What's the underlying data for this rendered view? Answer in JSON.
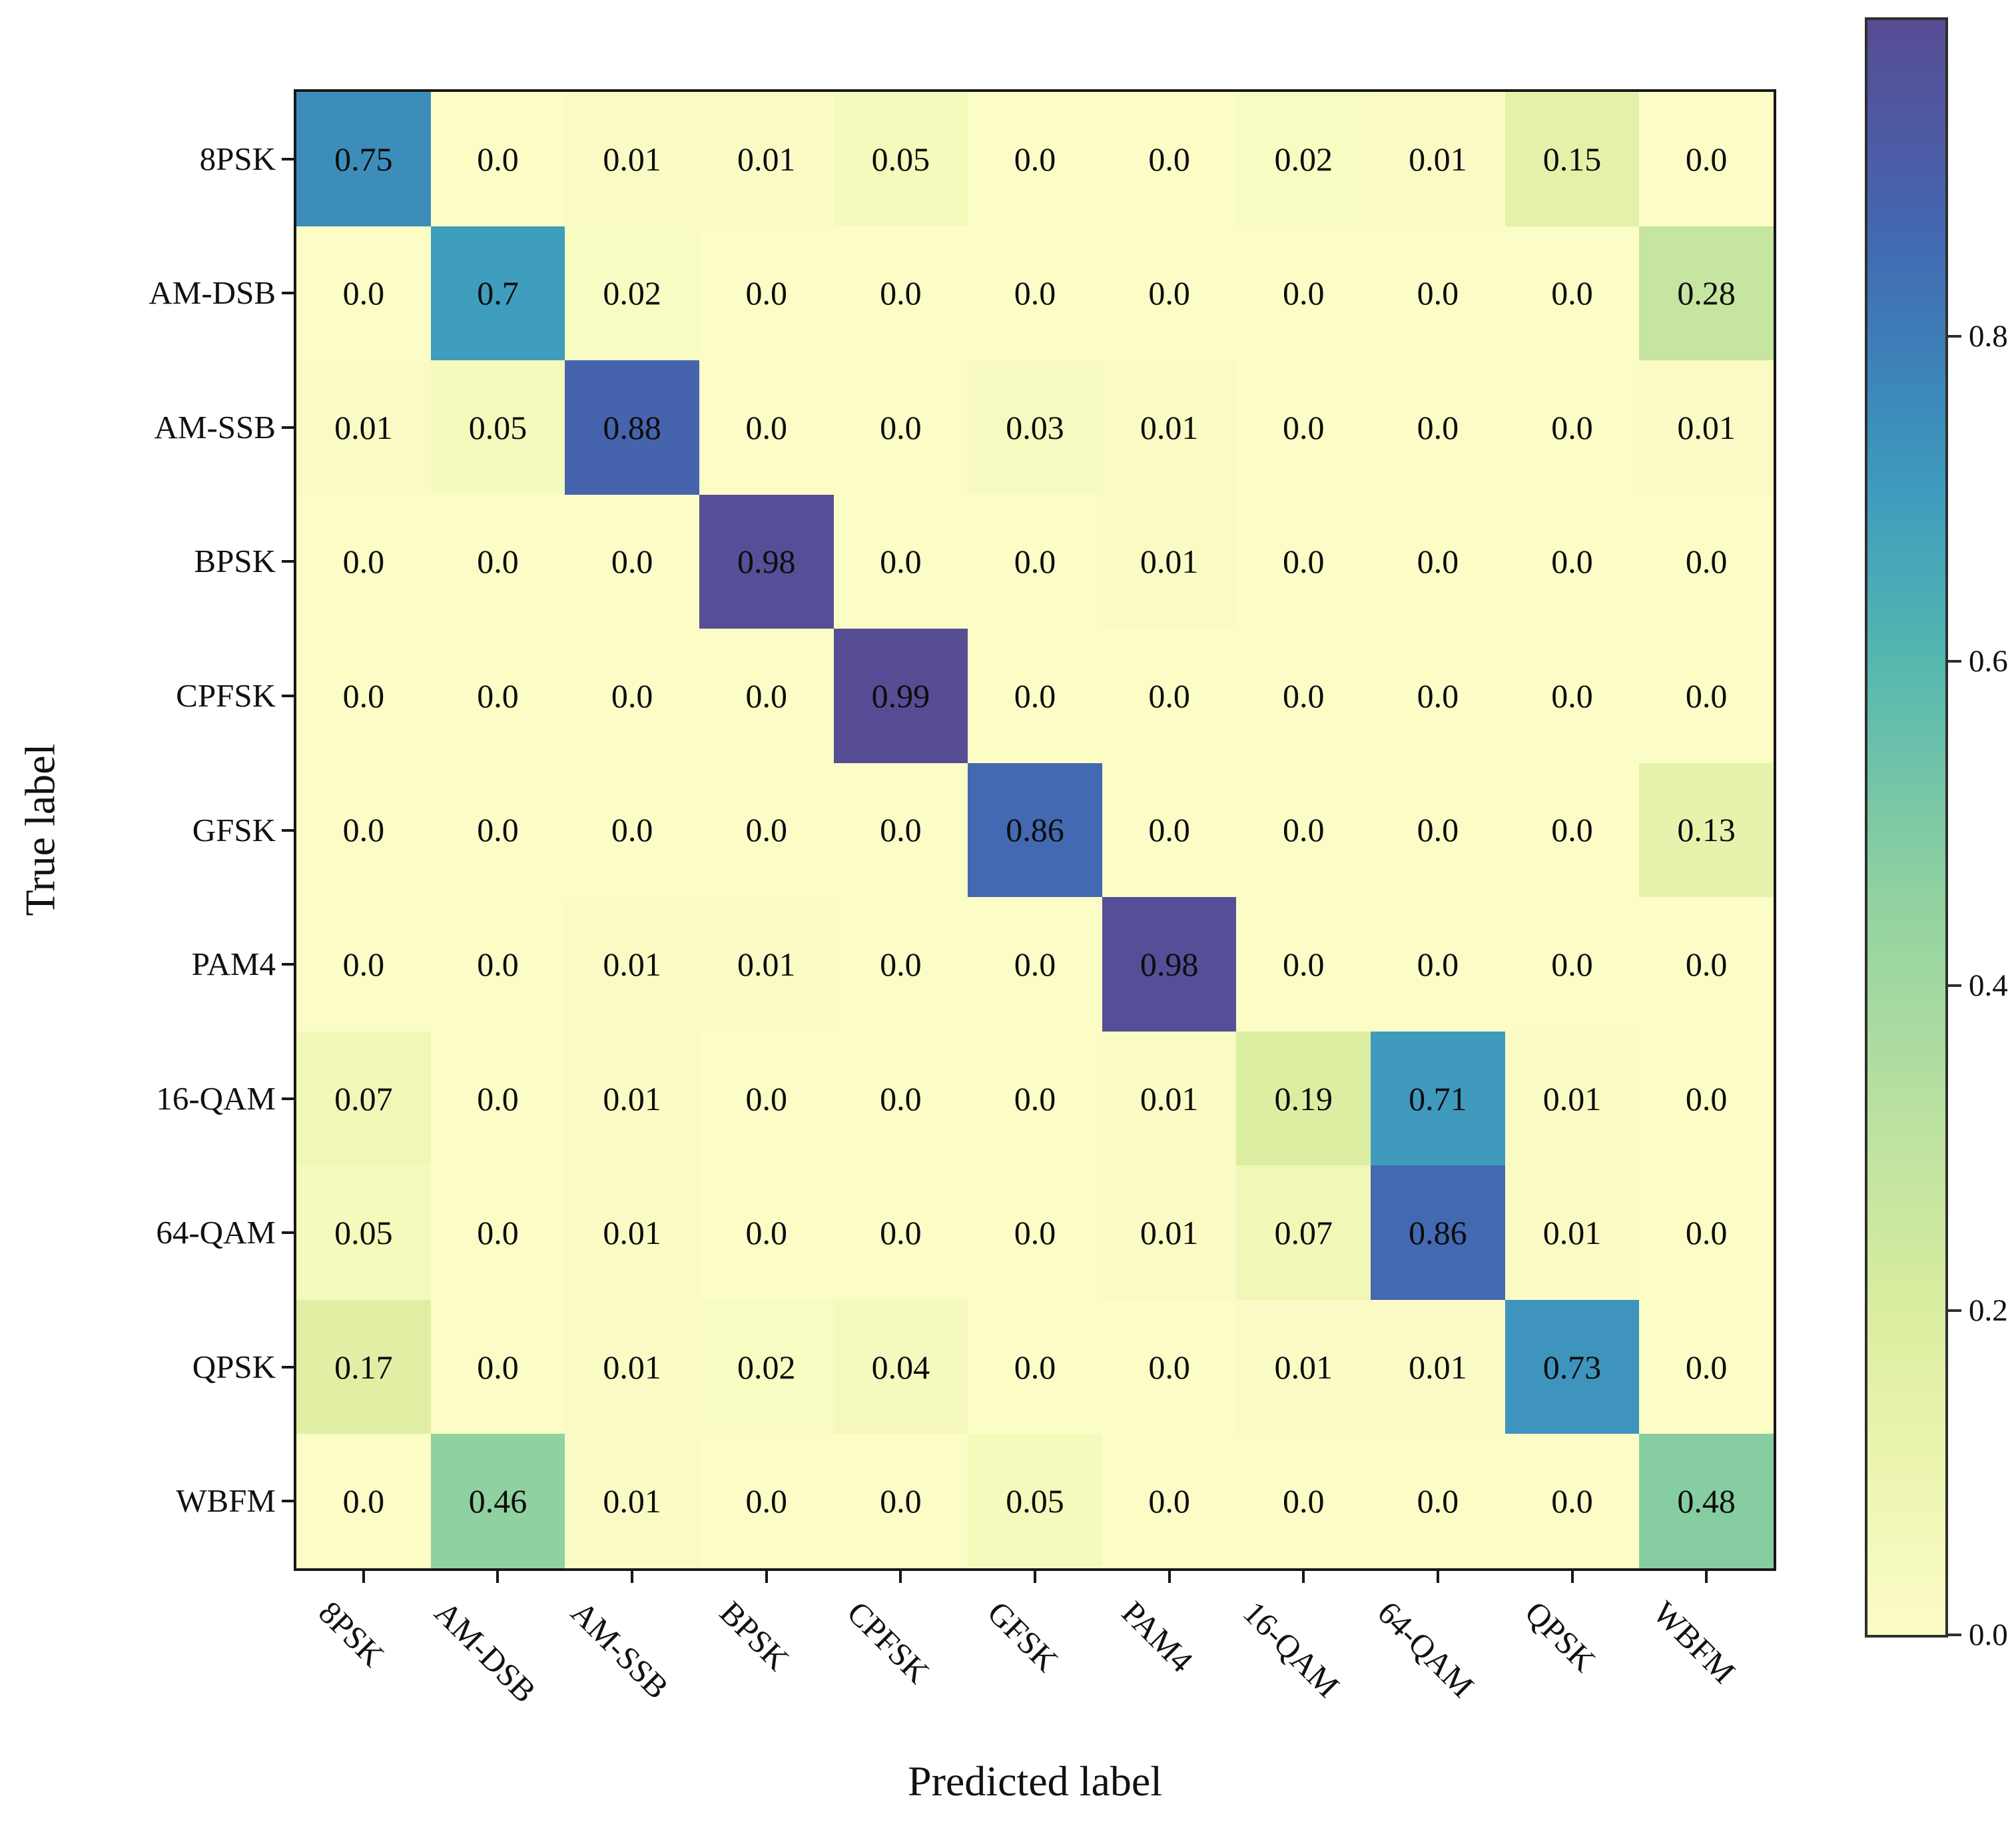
{
  "figure": {
    "background": "#ffffff",
    "text_color": "#111111",
    "spine_color": "#171717"
  },
  "axes": {
    "x_title": "Predicted label",
    "y_title": "True label"
  },
  "chart_data": {
    "type": "heatmap",
    "title": "",
    "xlabel": "Predicted label",
    "ylabel": "True label",
    "x_categories": [
      "8PSK",
      "AM-DSB",
      "AM-SSB",
      "BPSK",
      "CPFSK",
      "GFSK",
      "PAM4",
      "16-QAM",
      "64-QAM",
      "QPSK",
      "WBFM"
    ],
    "y_categories": [
      "8PSK",
      "AM-DSB",
      "AM-SSB",
      "BPSK",
      "CPFSK",
      "GFSK",
      "PAM4",
      "16-QAM",
      "64-QAM",
      "QPSK",
      "WBFM"
    ],
    "matrix": [
      [
        0.75,
        0.0,
        0.01,
        0.01,
        0.05,
        0.0,
        0.0,
        0.02,
        0.01,
        0.15,
        0.0
      ],
      [
        0.0,
        0.7,
        0.02,
        0.0,
        0.0,
        0.0,
        0.0,
        0.0,
        0.0,
        0.0,
        0.28
      ],
      [
        0.01,
        0.05,
        0.88,
        0.0,
        0.0,
        0.03,
        0.01,
        0.0,
        0.0,
        0.0,
        0.01
      ],
      [
        0.0,
        0.0,
        0.0,
        0.98,
        0.0,
        0.0,
        0.01,
        0.0,
        0.0,
        0.0,
        0.0
      ],
      [
        0.0,
        0.0,
        0.0,
        0.0,
        0.99,
        0.0,
        0.0,
        0.0,
        0.0,
        0.0,
        0.0
      ],
      [
        0.0,
        0.0,
        0.0,
        0.0,
        0.0,
        0.86,
        0.0,
        0.0,
        0.0,
        0.0,
        0.13
      ],
      [
        0.0,
        0.0,
        0.01,
        0.01,
        0.0,
        0.0,
        0.98,
        0.0,
        0.0,
        0.0,
        0.0
      ],
      [
        0.07,
        0.0,
        0.01,
        0.0,
        0.0,
        0.0,
        0.01,
        0.19,
        0.71,
        0.01,
        0.0
      ],
      [
        0.05,
        0.0,
        0.01,
        0.0,
        0.0,
        0.0,
        0.01,
        0.07,
        0.86,
        0.01,
        0.0
      ],
      [
        0.17,
        0.0,
        0.01,
        0.02,
        0.04,
        0.0,
        0.0,
        0.01,
        0.01,
        0.73,
        0.0
      ],
      [
        0.0,
        0.46,
        0.01,
        0.0,
        0.0,
        0.05,
        0.0,
        0.0,
        0.0,
        0.0,
        0.48
      ]
    ],
    "value_range": [
      0.0,
      0.995
    ],
    "grid": false,
    "legend_position": "right-colorbar",
    "colorbar": {
      "tick_labels": [
        "0.8",
        "0.6",
        "0.4",
        "0.2",
        "0.0"
      ],
      "tick_values": [
        0.8,
        0.6,
        0.4,
        0.2,
        0.0
      ]
    },
    "colormap_anchors": [
      [
        0.0,
        "#fbfcc6"
      ],
      [
        0.1,
        "#edf5b1"
      ],
      [
        0.2,
        "#daed9f"
      ],
      [
        0.3,
        "#c0e3a0"
      ],
      [
        0.46,
        "#8fd1a0"
      ],
      [
        0.6,
        "#55b7af"
      ],
      [
        0.7,
        "#3f9dbd"
      ],
      [
        0.76,
        "#3c8abb"
      ],
      [
        0.86,
        "#4269b1"
      ],
      [
        0.9,
        "#4a5fa9"
      ],
      [
        0.99,
        "#564d95"
      ]
    ]
  }
}
